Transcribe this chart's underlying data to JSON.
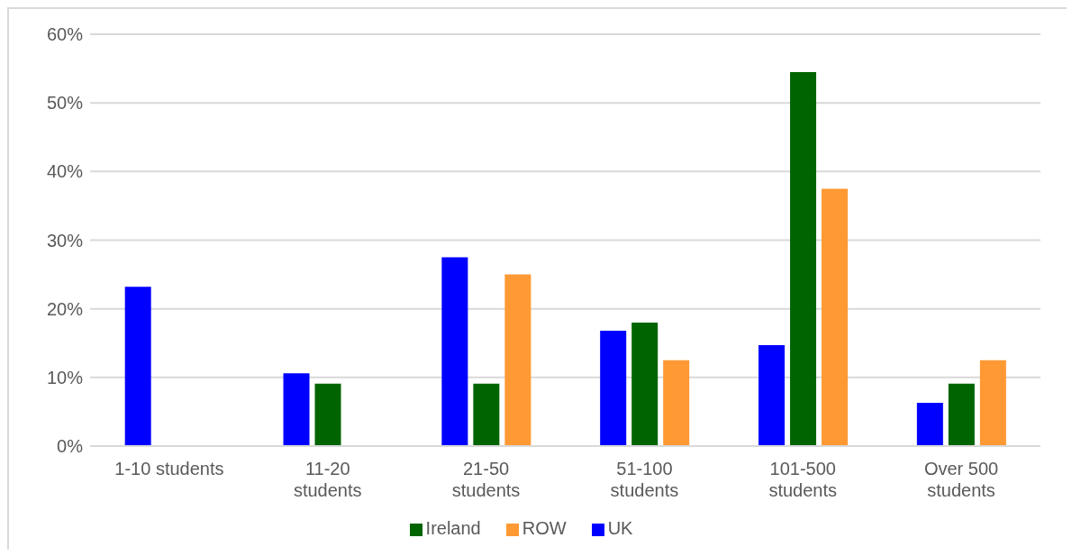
{
  "chart_data": {
    "type": "bar",
    "categories": [
      "1-10 students",
      "11-20 students",
      "21-50 students",
      "51-100 students",
      "101-500 students",
      "Over 500 students"
    ],
    "series": [
      {
        "name": "UK",
        "color": "#0000ff",
        "values": [
          23.2,
          10.6,
          27.5,
          16.8,
          14.7,
          6.3
        ]
      },
      {
        "name": "Ireland",
        "color": "#006400",
        "values": [
          0,
          9.1,
          9.1,
          18.0,
          54.5,
          9.1
        ]
      },
      {
        "name": "ROW",
        "color": "#ff9933",
        "values": [
          0,
          0,
          25,
          12.5,
          37.5,
          12.5
        ]
      }
    ],
    "ylim": [
      0,
      60
    ],
    "yticks": [
      {
        "value": 0,
        "label": "0%"
      },
      {
        "value": 10,
        "label": "10%"
      },
      {
        "value": 20,
        "label": "20%"
      },
      {
        "value": 30,
        "label": "30%"
      },
      {
        "value": 40,
        "label": "40%"
      },
      {
        "value": 50,
        "label": "50%"
      },
      {
        "value": 60,
        "label": "60%"
      }
    ],
    "grid": "y",
    "legend": "bottom"
  }
}
